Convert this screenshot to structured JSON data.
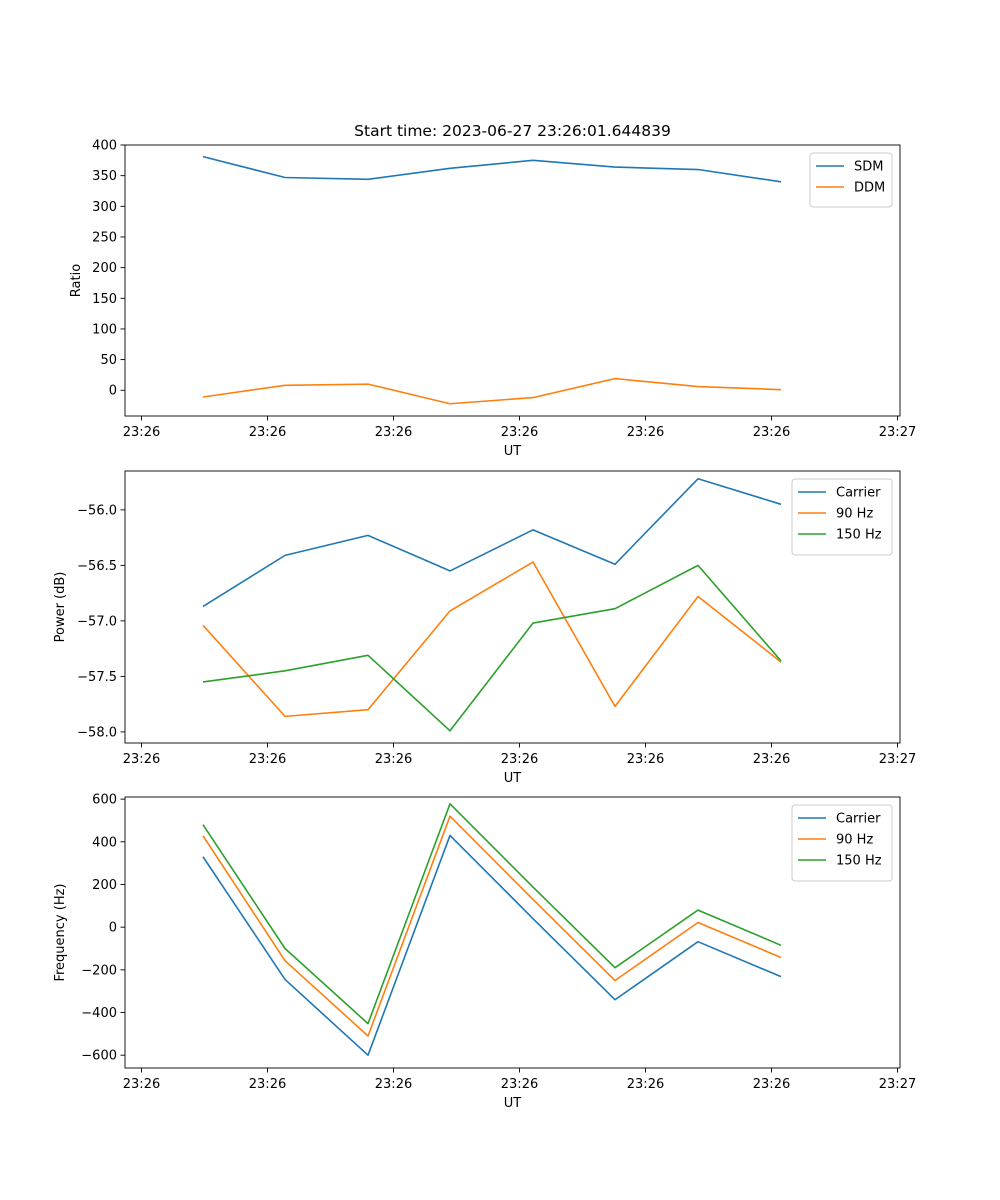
{
  "chart_data": [
    {
      "type": "line",
      "title": "Start time: 2023-06-27 23:26:01.644839",
      "xlabel": "UT",
      "ylabel": "Ratio",
      "x_tick_labels": [
        "23:26",
        "23:26",
        "23:26",
        "23:26",
        "23:26",
        "23:26",
        "23:27"
      ],
      "y_ticks": [
        0,
        50,
        100,
        150,
        200,
        250,
        300,
        350,
        400
      ],
      "ylim": [
        -42,
        400
      ],
      "legend_position": "top-right",
      "series": [
        {
          "name": "SDM",
          "color": "#1f77b4",
          "values": [
            381,
            347,
            344,
            362,
            375,
            364,
            360,
            340
          ]
        },
        {
          "name": "DDM",
          "color": "#ff7f0e",
          "values": [
            -11,
            8,
            10,
            -22,
            -12,
            19,
            6,
            1
          ]
        }
      ]
    },
    {
      "type": "line",
      "title": "",
      "xlabel": "UT",
      "ylabel": "Power (dB)",
      "x_tick_labels": [
        "23:26",
        "23:26",
        "23:26",
        "23:26",
        "23:26",
        "23:26",
        "23:27"
      ],
      "y_ticks": [
        -58.0,
        -57.5,
        -57.0,
        -56.5,
        -56.0
      ],
      "y_tick_labels": [
        "−58.0",
        "−57.5",
        "−57.0",
        "−56.5",
        "−56.0"
      ],
      "ylim": [
        -58.1,
        -55.65
      ],
      "legend_position": "top-right",
      "series": [
        {
          "name": "Carrier",
          "color": "#1f77b4",
          "values": [
            -56.87,
            -56.41,
            -56.23,
            -56.55,
            -56.18,
            -56.49,
            -55.72,
            -55.95
          ]
        },
        {
          "name": "90 Hz",
          "color": "#ff7f0e",
          "values": [
            -57.04,
            -57.86,
            -57.8,
            -56.91,
            -56.47,
            -57.77,
            -56.78,
            -57.37
          ]
        },
        {
          "name": "150 Hz",
          "color": "#2ca02c",
          "values": [
            -57.55,
            -57.45,
            -57.31,
            -57.99,
            -57.02,
            -56.89,
            -56.5,
            -57.36
          ]
        }
      ]
    },
    {
      "type": "line",
      "title": "",
      "xlabel": "UT",
      "ylabel": "Frequency (Hz)",
      "x_tick_labels": [
        "23:26",
        "23:26",
        "23:26",
        "23:26",
        "23:26",
        "23:26",
        "23:27"
      ],
      "y_ticks": [
        -600,
        -400,
        -200,
        0,
        200,
        400,
        600
      ],
      "y_tick_labels": [
        "−600",
        "−400",
        "−200",
        "0",
        "200",
        "400",
        "600"
      ],
      "ylim": [
        -660,
        610
      ],
      "legend_position": "top-right",
      "series": [
        {
          "name": "Carrier",
          "color": "#1f77b4",
          "values": [
            330,
            -245,
            -600,
            430,
            40,
            -340,
            -68,
            -232
          ]
        },
        {
          "name": "90 Hz",
          "color": "#ff7f0e",
          "values": [
            428,
            -157,
            -510,
            520,
            130,
            -250,
            22,
            -142
          ]
        },
        {
          "name": "150 Hz",
          "color": "#2ca02c",
          "values": [
            480,
            -100,
            -452,
            578,
            188,
            -190,
            80,
            -85
          ]
        }
      ]
    }
  ]
}
